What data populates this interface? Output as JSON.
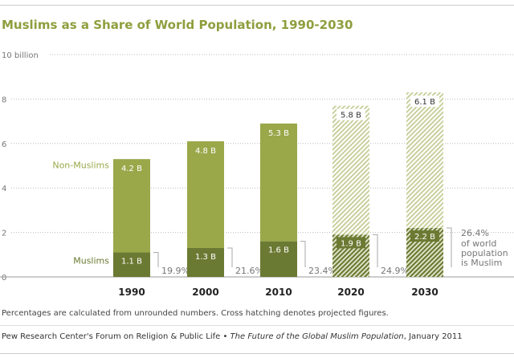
{
  "chart_data": {
    "type": "bar",
    "stacked": true,
    "title": "Muslims as a Share of World Population, 1990-2030",
    "categories": [
      "1990",
      "2000",
      "2010",
      "2020",
      "2030"
    ],
    "y_ticks": [
      "0",
      "2",
      "4",
      "6",
      "8",
      "10 billion"
    ],
    "ylim": [
      0,
      10
    ],
    "grid": true,
    "projected": [
      false,
      false,
      false,
      true,
      true
    ],
    "series": [
      {
        "name": "Muslims",
        "values": [
          1.1,
          1.3,
          1.6,
          1.9,
          2.2
        ],
        "labels": [
          "1.1 B",
          "1.3 B",
          "1.6 B",
          "1.9 B",
          "2.2 B"
        ],
        "color": "#6b7a33"
      },
      {
        "name": "Non-Muslims",
        "values": [
          4.2,
          4.8,
          5.3,
          5.8,
          6.1
        ],
        "labels": [
          "4.2 B",
          "4.8 B",
          "5.3 B",
          "5.8 B",
          "6.1 B"
        ],
        "color": "#9aa84a"
      }
    ],
    "percent_labels": [
      "19.9%",
      "21.6%",
      "23.4%",
      "24.9%",
      "26.4%"
    ],
    "annotation_lines": [
      "of world",
      "population",
      "is Muslim"
    ]
  },
  "footer": {
    "note": "Percentages are calculated from unrounded numbers. Cross hatching denotes projected figures.",
    "source_pre": "Pew Research Center's Forum on Religion & Public Life • ",
    "source_title": "The Future of the Global Muslim Population",
    "source_post": ", January 2011"
  }
}
